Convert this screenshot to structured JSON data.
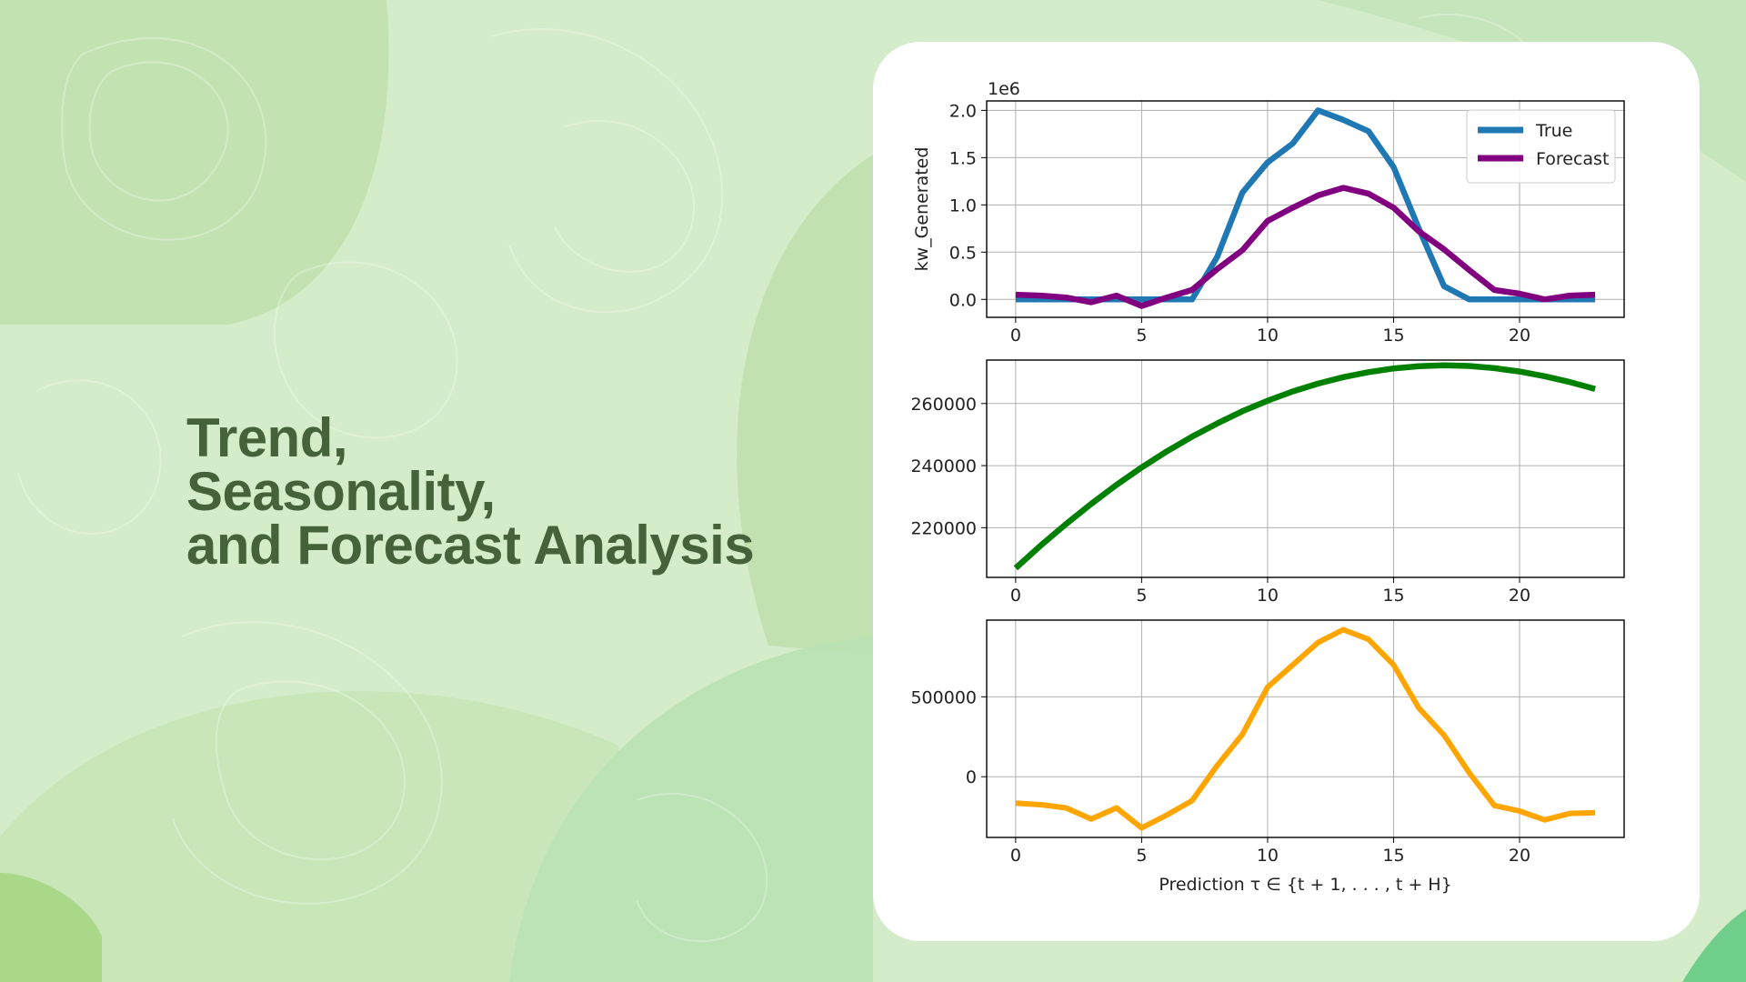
{
  "slide": {
    "title_lines": [
      "Trend,",
      "Seasonality,",
      "and Forecast Analysis"
    ]
  },
  "colors": {
    "background": "#d4ecc9",
    "title": "#45623a",
    "true": "#1f77b4",
    "forecast": "#800080",
    "trend": "#008000",
    "seasonality": "#ffa500"
  },
  "chart_data": [
    {
      "type": "line",
      "ylabel": "kw_Generated",
      "offset_label": "1e6",
      "x": [
        0,
        1,
        2,
        3,
        4,
        5,
        6,
        7,
        8,
        9,
        10,
        11,
        12,
        13,
        14,
        15,
        16,
        17,
        18,
        19,
        20,
        21,
        22,
        23
      ],
      "xticks": [
        0,
        5,
        10,
        15,
        20
      ],
      "yticks": [
        0.0,
        0.5,
        1.0,
        1.5,
        2.0
      ],
      "ytick_labels": [
        "0.0",
        "0.5",
        "1.0",
        "1.5",
        "2.0"
      ],
      "xlim": [
        -1.15,
        24.15
      ],
      "ylim": [
        -0.19,
        2.1
      ],
      "grid": true,
      "legend_position": "top-right",
      "series": [
        {
          "name": "True",
          "color": "#1f77b4",
          "values": [
            0.0,
            0.0,
            0.0,
            0.0,
            0.0,
            0.0,
            0.0,
            0.0,
            0.45,
            1.13,
            1.45,
            1.65,
            2.0,
            1.9,
            1.78,
            1.4,
            0.75,
            0.14,
            0.0,
            0.0,
            0.0,
            0.0,
            0.0,
            0.0
          ]
        },
        {
          "name": "Forecast",
          "color": "#800080",
          "values": [
            0.05,
            0.04,
            0.02,
            -0.03,
            0.04,
            -0.07,
            0.02,
            0.1,
            0.32,
            0.52,
            0.83,
            0.97,
            1.1,
            1.18,
            1.12,
            0.97,
            0.72,
            0.53,
            0.31,
            0.1,
            0.06,
            0.0,
            0.04,
            0.05
          ]
        }
      ]
    },
    {
      "type": "line",
      "x": [
        0,
        1,
        2,
        3,
        4,
        5,
        6,
        7,
        8,
        9,
        10,
        11,
        12,
        13,
        14,
        15,
        16,
        17,
        18,
        19,
        20,
        21,
        22,
        23
      ],
      "xticks": [
        0,
        5,
        10,
        15,
        20
      ],
      "yticks": [
        220000,
        240000,
        260000
      ],
      "ytick_labels": [
        "220000",
        "240000",
        "260000"
      ],
      "xlim": [
        -1.15,
        24.15
      ],
      "ylim": [
        204000,
        274000
      ],
      "grid": true,
      "series": [
        {
          "color": "#008000",
          "values": [
            207000,
            214300,
            221200,
            227700,
            233800,
            239400,
            244600,
            249300,
            253600,
            257500,
            260900,
            263900,
            266400,
            268500,
            270100,
            271300,
            272000,
            272300,
            272100,
            271400,
            270300,
            268800,
            266900,
            264700
          ]
        }
      ]
    },
    {
      "type": "line",
      "x": [
        0,
        1,
        2,
        3,
        4,
        5,
        6,
        7,
        8,
        9,
        10,
        11,
        12,
        13,
        14,
        15,
        16,
        17,
        18,
        19,
        20,
        21,
        22,
        23
      ],
      "xticks": [
        0,
        5,
        10,
        15,
        20
      ],
      "yticks": [
        0,
        500000
      ],
      "ytick_labels": [
        "0",
        "500000"
      ],
      "xlim": [
        -1.15,
        24.15
      ],
      "ylim": [
        -380000,
        980000
      ],
      "grid": true,
      "xlabel": "Prediction τ ∈ {t + 1, . . . , t + H}",
      "series": [
        {
          "color": "#ffa500",
          "values": [
            -165000,
            -175000,
            -195000,
            -265000,
            -195000,
            -320000,
            -240000,
            -150000,
            70000,
            265000,
            560000,
            700000,
            840000,
            920000,
            860000,
            700000,
            430000,
            260000,
            25000,
            -180000,
            -215000,
            -270000,
            -230000,
            -225000
          ]
        }
      ]
    }
  ]
}
